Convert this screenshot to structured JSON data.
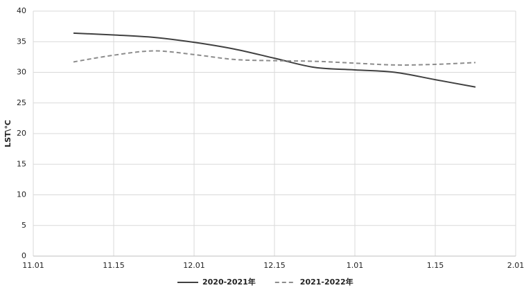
{
  "chart_data": {
    "type": "line",
    "y_label": "LST\\℃",
    "x": [
      1,
      2,
      3,
      4,
      5,
      6,
      7,
      8,
      9,
      10,
      11
    ],
    "xlim": [
      0,
      12
    ],
    "xticks": [
      {
        "value": 0,
        "label": "11.01"
      },
      {
        "value": 2,
        "label": "11.15"
      },
      {
        "value": 4,
        "label": "12.01"
      },
      {
        "value": 6,
        "label": "12.15"
      },
      {
        "value": 8,
        "label": "1.01"
      },
      {
        "value": 10,
        "label": "1.15"
      },
      {
        "value": 12,
        "label": "2.01"
      }
    ],
    "ylim": [
      0,
      40
    ],
    "yticks": [
      0,
      5,
      10,
      15,
      20,
      25,
      30,
      35,
      40
    ],
    "grid": true,
    "smooth": true,
    "series": [
      {
        "name": "2020-2021年",
        "color": "#404040",
        "dash": "solid",
        "values": [
          36.4,
          36.1,
          35.7,
          34.9,
          33.8,
          32.3,
          30.8,
          30.4,
          30.0,
          28.8,
          27.6
        ]
      },
      {
        "name": "2021-2022年",
        "color": "#8c8c8c",
        "dash": "dashed",
        "values": [
          31.7,
          32.8,
          33.5,
          32.9,
          32.1,
          31.9,
          31.8,
          31.5,
          31.2,
          31.3,
          31.6
        ]
      }
    ]
  }
}
